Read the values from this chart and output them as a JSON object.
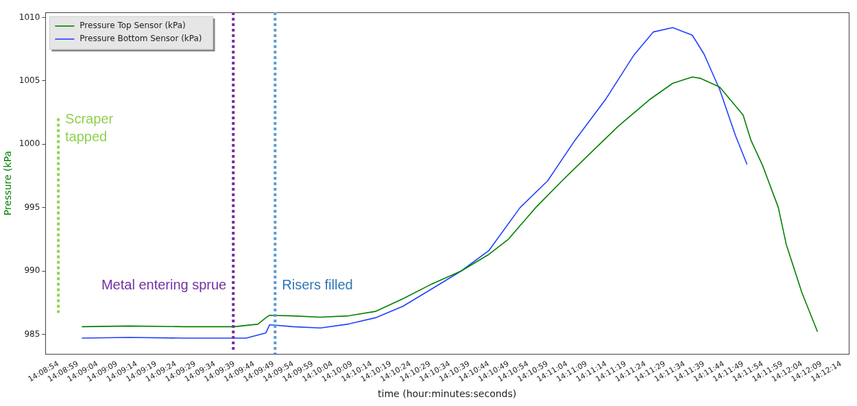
{
  "chart_data": {
    "type": "line",
    "xlabel": "time (hour:minutes:seconds)",
    "ylabel": "Pressure (kPa",
    "legend": "top left",
    "grid": false,
    "marker": "none",
    "line_style": "solid",
    "xlim": [
      14.14742,
      14.20444
    ],
    "ylim": [
      983.45,
      1010.4
    ],
    "yticks": [
      985,
      990,
      995,
      1000,
      1005,
      1010
    ],
    "xticks": [
      {
        "value": 14.14833,
        "label": "14:08:54"
      },
      {
        "value": 14.14972,
        "label": "14:08:59"
      },
      {
        "value": 14.15111,
        "label": "14:09:04"
      },
      {
        "value": 14.1525,
        "label": "14:09:09"
      },
      {
        "value": 14.15389,
        "label": "14:09:14"
      },
      {
        "value": 14.15528,
        "label": "14:09:19"
      },
      {
        "value": 14.15667,
        "label": "14:09:24"
      },
      {
        "value": 14.15806,
        "label": "14:09:29"
      },
      {
        "value": 14.15944,
        "label": "14:09:34"
      },
      {
        "value": 14.16083,
        "label": "14:09:39"
      },
      {
        "value": 14.16222,
        "label": "14:09:44"
      },
      {
        "value": 14.16361,
        "label": "14:09:49"
      },
      {
        "value": 14.165,
        "label": "14:09:54"
      },
      {
        "value": 14.16639,
        "label": "14:09:59"
      },
      {
        "value": 14.16778,
        "label": "14:10:04"
      },
      {
        "value": 14.16917,
        "label": "14:10:09"
      },
      {
        "value": 14.17056,
        "label": "14:10:14"
      },
      {
        "value": 14.17194,
        "label": "14:10:19"
      },
      {
        "value": 14.17333,
        "label": "14:10:24"
      },
      {
        "value": 14.17472,
        "label": "14:10:29"
      },
      {
        "value": 14.17611,
        "label": "14:10:34"
      },
      {
        "value": 14.1775,
        "label": "14:10:39"
      },
      {
        "value": 14.17889,
        "label": "14:10:44"
      },
      {
        "value": 14.18028,
        "label": "14:10:49"
      },
      {
        "value": 14.18167,
        "label": "14:10:54"
      },
      {
        "value": 14.18306,
        "label": "14:10:59"
      },
      {
        "value": 14.18444,
        "label": "14:11:04"
      },
      {
        "value": 14.18583,
        "label": "14:11:09"
      },
      {
        "value": 14.18722,
        "label": "14:11:14"
      },
      {
        "value": 14.18861,
        "label": "14:11:19"
      },
      {
        "value": 14.19,
        "label": "14:11:24"
      },
      {
        "value": 14.19139,
        "label": "14:11:29"
      },
      {
        "value": 14.19278,
        "label": "14:11:34"
      },
      {
        "value": 14.19417,
        "label": "14:11:39"
      },
      {
        "value": 14.19556,
        "label": "14:11:44"
      },
      {
        "value": 14.19694,
        "label": "14:11:49"
      },
      {
        "value": 14.19833,
        "label": "14:11:54"
      },
      {
        "value": 14.19972,
        "label": "14:11:59"
      },
      {
        "value": 14.20111,
        "label": "14:12:04"
      },
      {
        "value": 14.2025,
        "label": "14:12:09"
      },
      {
        "value": 14.20389,
        "label": "14:12:14"
      }
    ],
    "series": [
      {
        "name": "Pressure Top Sensor (kPa)",
        "color": "#008000",
        "x": [
          14.15,
          14.15333,
          14.15722,
          14.16083,
          14.1625,
          14.16306,
          14.16333,
          14.165,
          14.16694,
          14.16889,
          14.17083,
          14.17278,
          14.17472,
          14.17694,
          14.17889,
          14.18028,
          14.18222,
          14.18417,
          14.18611,
          14.18806,
          14.19028,
          14.19194,
          14.19333,
          14.19389,
          14.19528,
          14.19694,
          14.1975,
          14.19833,
          14.19944,
          14.2,
          14.20111,
          14.20222
        ],
        "values": [
          985.6,
          985.65,
          985.6,
          985.6,
          985.8,
          986.3,
          986.5,
          986.45,
          986.35,
          986.45,
          986.8,
          987.8,
          988.9,
          990.0,
          991.3,
          992.5,
          995.0,
          997.2,
          999.3,
          1001.4,
          1003.5,
          1004.8,
          1005.3,
          1005.2,
          1004.5,
          1002.3,
          1000.3,
          998.3,
          995.0,
          992.1,
          988.3,
          985.2
        ]
      },
      {
        "name": "Pressure Bottom Sensor (kPa)",
        "color": "#1f3fff",
        "x": [
          14.15,
          14.15333,
          14.15722,
          14.16167,
          14.16306,
          14.16333,
          14.165,
          14.16694,
          14.16889,
          14.17083,
          14.17278,
          14.17472,
          14.17694,
          14.17889,
          14.18111,
          14.18306,
          14.185,
          14.18722,
          14.18917,
          14.19056,
          14.19194,
          14.19333,
          14.19417,
          14.19528,
          14.19639,
          14.19722
        ],
        "values": [
          984.7,
          984.75,
          984.7,
          984.7,
          985.1,
          985.75,
          985.6,
          985.5,
          985.8,
          986.3,
          987.2,
          988.5,
          990.0,
          991.6,
          995.0,
          997.1,
          1000.3,
          1003.6,
          1007.0,
          1008.85,
          1009.2,
          1008.6,
          1007.1,
          1004.3,
          1000.7,
          998.4
        ]
      }
    ],
    "ref_lines": [
      {
        "axis": "x",
        "value": 14.14833,
        "label": "Scraper\ntapped",
        "color": "#92d050",
        "line_style": "dotted"
      },
      {
        "axis": "x",
        "value": 14.16075,
        "label": "Metal entering sprue",
        "color": "#7030a0",
        "line_style": "dotted"
      },
      {
        "axis": "x",
        "value": 14.16372,
        "label": "Risers filled",
        "color": "#5b9bd5",
        "line_style": "dotted"
      }
    ]
  }
}
